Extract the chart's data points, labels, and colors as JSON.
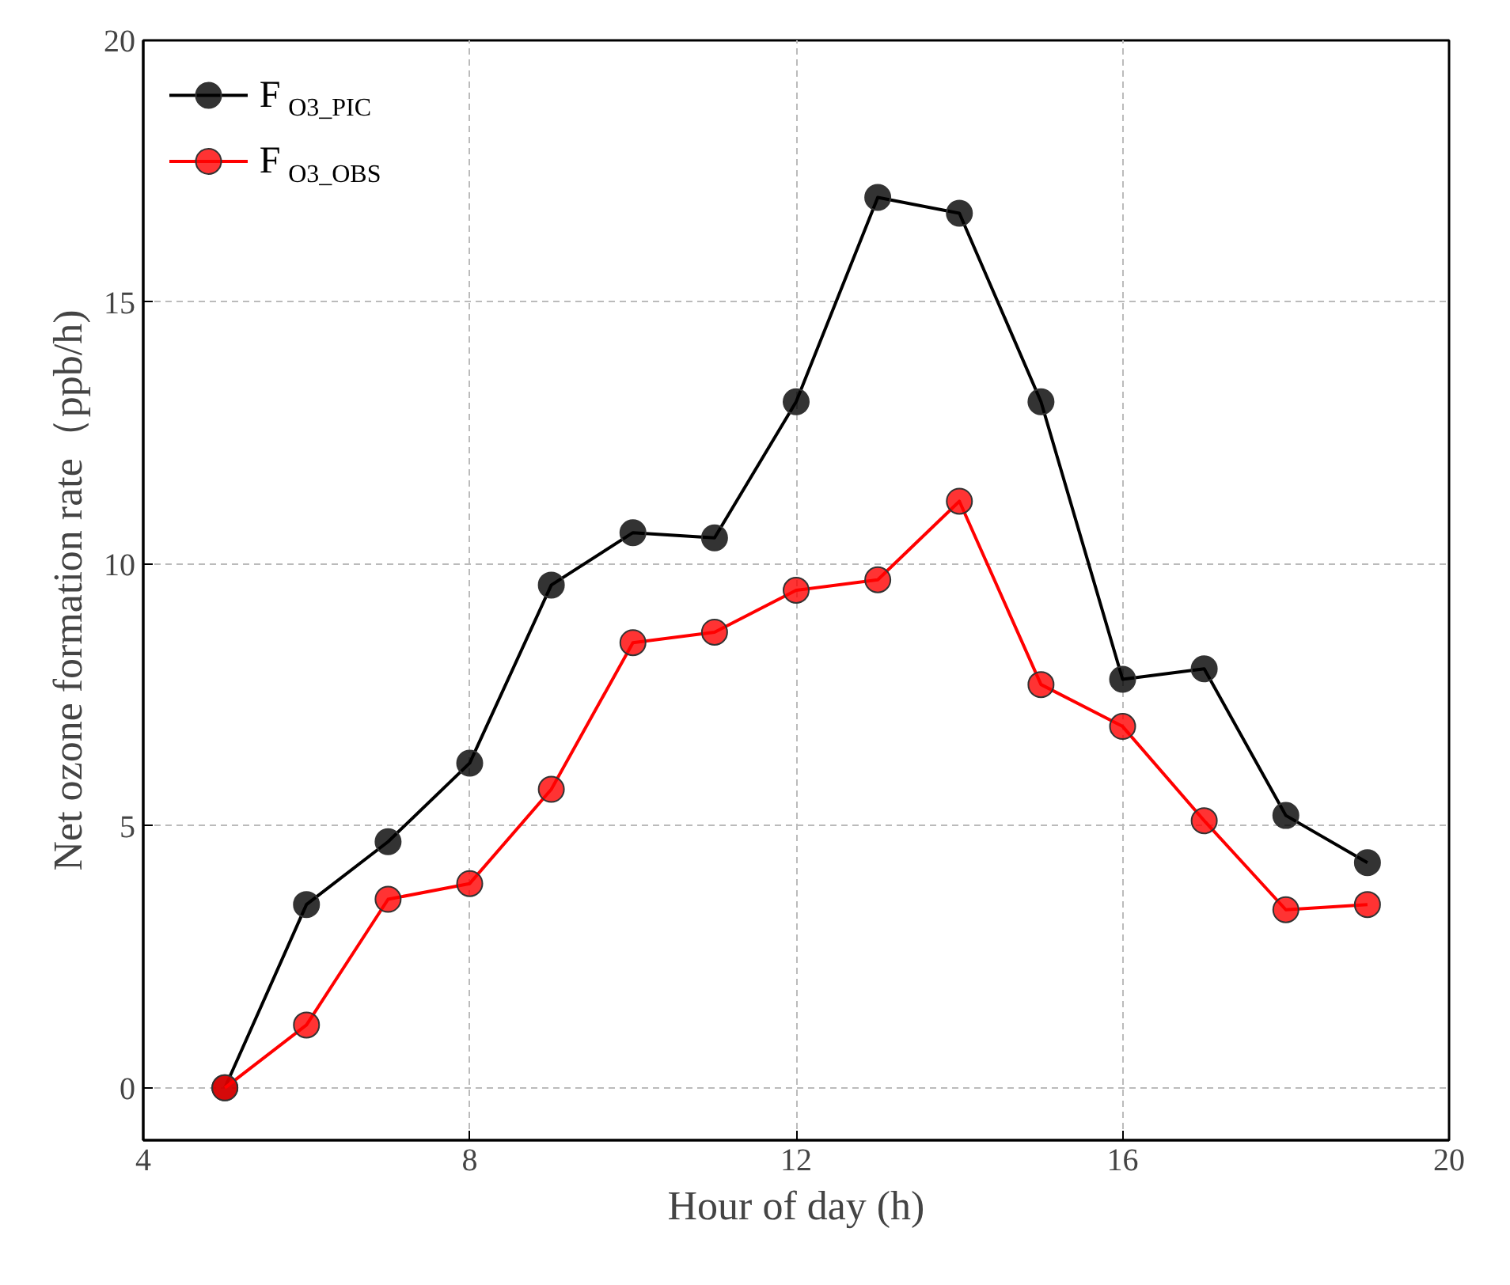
{
  "chart_data": {
    "type": "line",
    "xlabel": "Hour of day (h)",
    "ylabel": "Net ozone formation rate（ppb/h)",
    "x": [
      5,
      6,
      7,
      8,
      9,
      10,
      11,
      12,
      13,
      14,
      15,
      16,
      17,
      18,
      19
    ],
    "series": [
      {
        "name": "F$_{O3_PIC}$",
        "color": "#000000",
        "values": [
          0,
          3.5,
          4.7,
          6.2,
          9.6,
          10.6,
          10.5,
          13.1,
          17.0,
          16.7,
          13.1,
          7.8,
          8.0,
          5.2,
          4.3
        ]
      },
      {
        "name": "F$_{O3_OBS}$",
        "color": "#ff0000",
        "values": [
          0,
          1.2,
          3.6,
          3.9,
          5.7,
          8.5,
          8.7,
          9.5,
          9.7,
          11.2,
          7.7,
          6.9,
          5.1,
          3.4,
          3.5
        ]
      }
    ],
    "xlim": [
      4,
      20
    ],
    "ylim": [
      -1,
      20
    ],
    "xticks": [
      4,
      8,
      12,
      16,
      20
    ],
    "yticks": [
      0,
      5,
      10,
      15,
      20
    ],
    "grid": true,
    "legend": "top left",
    "marker": "circle",
    "line_style": "solid"
  }
}
